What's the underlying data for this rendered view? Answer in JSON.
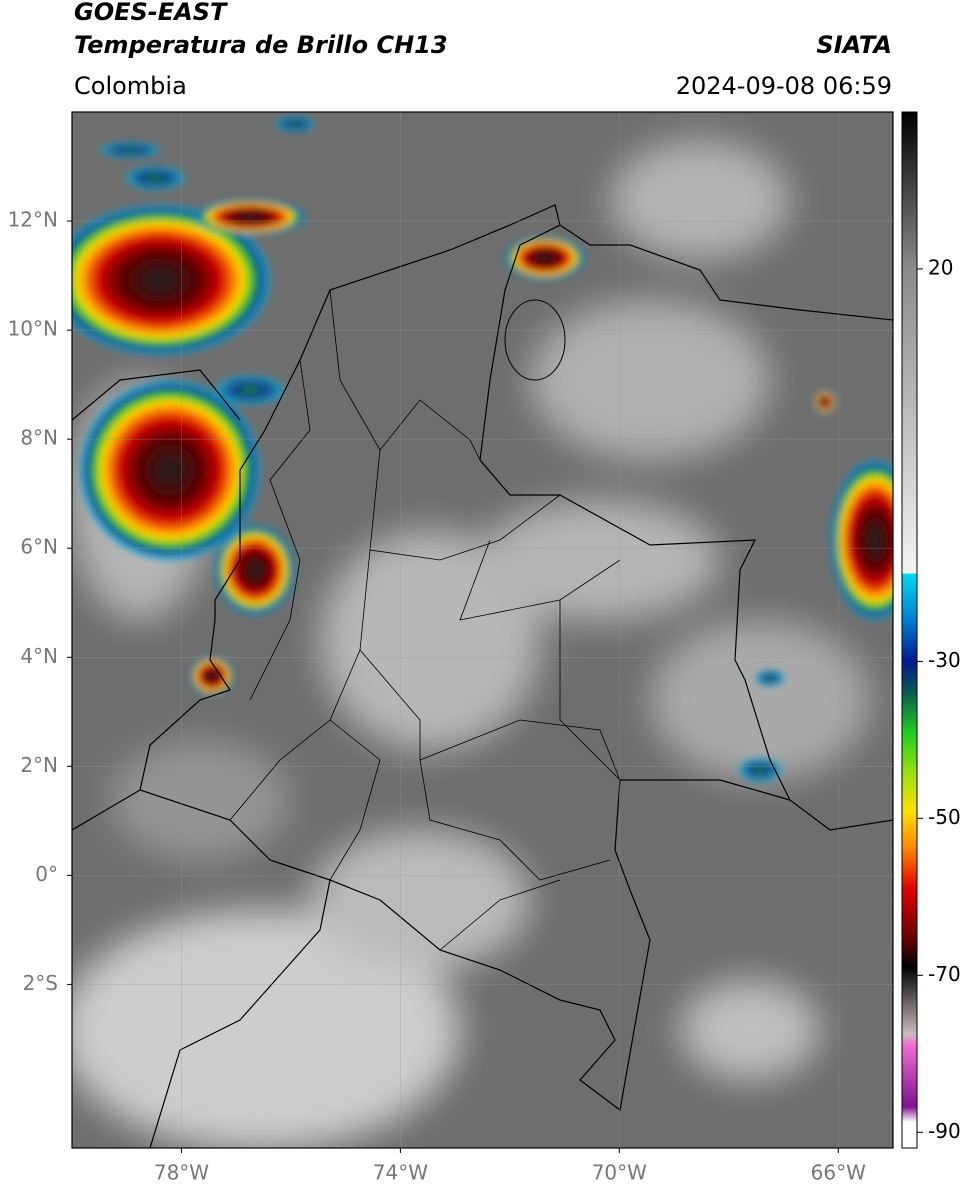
{
  "header": {
    "title_line1": "GOES-EAST",
    "title_line2": "Temperatura de Brillo CH13",
    "region": "Colombia",
    "source": "SIATA",
    "datetime": "2024-09-08 06:59"
  },
  "map": {
    "lonlim": [
      -80,
      -65
    ],
    "latlim": [
      -5,
      14
    ],
    "lonticks": [
      {
        "value": -78,
        "label": "78°W"
      },
      {
        "value": -74,
        "label": "74°W"
      },
      {
        "value": -70,
        "label": "70°W"
      },
      {
        "value": -66,
        "label": "66°W"
      }
    ],
    "latticks": [
      {
        "value": 12,
        "label": "12°N"
      },
      {
        "value": 10,
        "label": "10°N"
      },
      {
        "value": 8,
        "label": "8°N"
      },
      {
        "value": 6,
        "label": "6°N"
      },
      {
        "value": 4,
        "label": "4°N"
      },
      {
        "value": 2,
        "label": "2°N"
      },
      {
        "value": 0,
        "label": "0°"
      },
      {
        "value": -2,
        "label": "2°S"
      }
    ]
  },
  "colorbar": {
    "lim": [
      -92,
      40
    ],
    "ticks": [
      20,
      -30,
      -50,
      -70,
      -90
    ]
  }
}
